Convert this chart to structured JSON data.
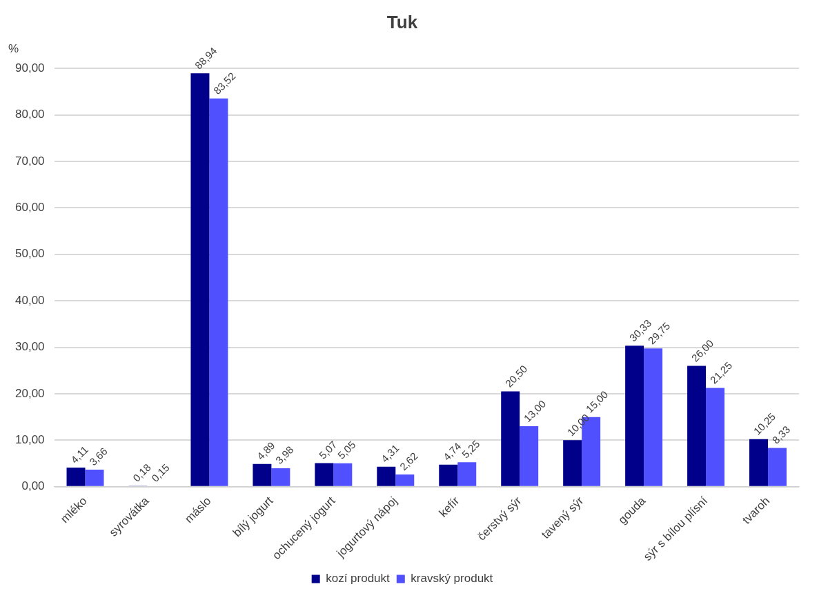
{
  "chart_data": {
    "type": "bar",
    "title": "Tuk",
    "ylabel": "%",
    "categories": [
      "mléko",
      "syrovátka",
      "máslo",
      "bílý jogurt",
      "ochucený jogurt",
      "jogurtový nápoj",
      "kefír",
      "čerstvý sýr",
      "tavený sýr",
      "gouda",
      "sýr s bílou plísní",
      "tvaroh"
    ],
    "series": [
      {
        "name": "kozí produkt",
        "color": "#00008b",
        "values": [
          4.11,
          0.18,
          88.94,
          4.89,
          5.07,
          4.31,
          4.74,
          20.5,
          10.0,
          30.33,
          26.0,
          10.25
        ],
        "value_labels": [
          "4,11",
          "0,18",
          "88,94",
          "4,89",
          "5,07",
          "4,31",
          "4,74",
          "20,50",
          "10,00",
          "30,33",
          "26,00",
          "10,25"
        ]
      },
      {
        "name": "kravský produkt",
        "color": "#5050ff",
        "values": [
          3.66,
          0.15,
          83.52,
          3.98,
          5.05,
          2.62,
          5.25,
          13.0,
          15.0,
          29.75,
          21.25,
          8.33
        ],
        "value_labels": [
          "3,66",
          "0,15",
          "83,52",
          "3,98",
          "5,05",
          "2,62",
          "5,25",
          "13,00",
          "15,00",
          "29,75",
          "21,25",
          "8,33"
        ]
      }
    ],
    "ylim": [
      0,
      90
    ],
    "yticks": [
      {
        "value": 0,
        "label": "0,00"
      },
      {
        "value": 10,
        "label": "10,00"
      },
      {
        "value": 20,
        "label": "20,00"
      },
      {
        "value": 30,
        "label": "30,00"
      },
      {
        "value": 40,
        "label": "40,00"
      },
      {
        "value": 50,
        "label": "50,00"
      },
      {
        "value": 60,
        "label": "60,00"
      },
      {
        "value": 70,
        "label": "70,00"
      },
      {
        "value": 80,
        "label": "80,00"
      },
      {
        "value": 90,
        "label": "90,00"
      }
    ],
    "grid": "y",
    "legend": "bottom"
  }
}
